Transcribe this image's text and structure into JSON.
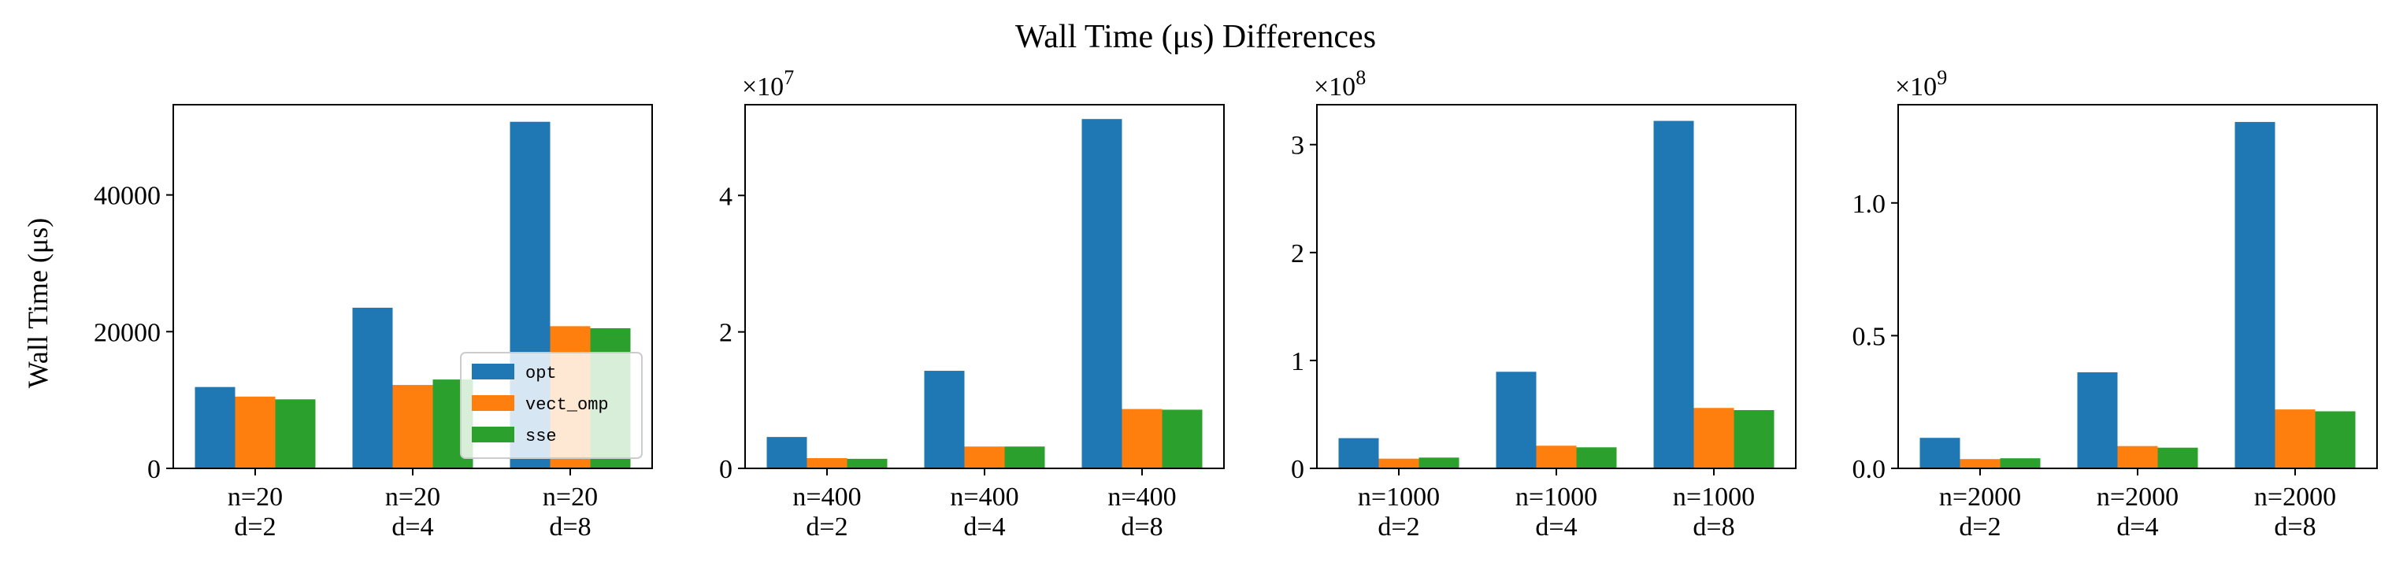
{
  "title": "Wall Time (μs) Differences",
  "ylabel": "Wall Time (μs)",
  "legend": {
    "placement": "lower-right of first panel",
    "entries": [
      {
        "name": "opt",
        "color": "#1f77b4"
      },
      {
        "name": "vect_omp",
        "color": "#ff7f0e"
      },
      {
        "name": "sse",
        "color": "#2ca02c"
      }
    ]
  },
  "chart_data": [
    {
      "type": "bar",
      "categories": [
        [
          "n=20",
          "d=2"
        ],
        [
          "n=20",
          "d=4"
        ],
        [
          "n=20",
          "d=8"
        ]
      ],
      "series": [
        {
          "name": "opt",
          "values": [
            11900,
            23500,
            50700
          ]
        },
        {
          "name": "vect_omp",
          "values": [
            10500,
            12200,
            20800
          ]
        },
        {
          "name": "sse",
          "values": [
            10100,
            13000,
            20500
          ]
        }
      ],
      "ylim": [
        0,
        53200
      ],
      "yticks": [
        0,
        20000,
        40000
      ],
      "ytick_labels": [
        "0",
        "20000",
        "40000"
      ],
      "multiplier": ""
    },
    {
      "type": "bar",
      "categories": [
        [
          "n=400",
          "d=2"
        ],
        [
          "n=400",
          "d=4"
        ],
        [
          "n=400",
          "d=8"
        ]
      ],
      "series": [
        {
          "name": "opt",
          "values": [
            4600000,
            14300000,
            51200000
          ]
        },
        {
          "name": "vect_omp",
          "values": [
            1500000,
            3200000,
            8700000
          ]
        },
        {
          "name": "sse",
          "values": [
            1400000,
            3200000,
            8600000
          ]
        }
      ],
      "ylim": [
        0,
        53300000
      ],
      "yticks": [
        0,
        20000000,
        40000000
      ],
      "ytick_labels": [
        "0",
        "2",
        "4"
      ],
      "multiplier": "×10^7"
    },
    {
      "type": "bar",
      "categories": [
        [
          "n=1000",
          "d=2"
        ],
        [
          "n=1000",
          "d=4"
        ],
        [
          "n=1000",
          "d=8"
        ]
      ],
      "series": [
        {
          "name": "opt",
          "values": [
            28000000,
            89500000,
            322000000
          ]
        },
        {
          "name": "vect_omp",
          "values": [
            9000000,
            21000000,
            56000000
          ]
        },
        {
          "name": "sse",
          "values": [
            10000000,
            19500000,
            54000000
          ]
        }
      ],
      "ylim": [
        0,
        337000000
      ],
      "yticks": [
        0,
        100000000,
        200000000,
        300000000
      ],
      "ytick_labels": [
        "0",
        "1",
        "2",
        "3"
      ],
      "multiplier": "×10^8"
    },
    {
      "type": "bar",
      "categories": [
        [
          "n=2000",
          "d=2"
        ],
        [
          "n=2000",
          "d=4"
        ],
        [
          "n=2000",
          "d=8"
        ]
      ],
      "series": [
        {
          "name": "opt",
          "values": [
            115000000,
            362000000,
            1305000000
          ]
        },
        {
          "name": "vect_omp",
          "values": [
            35000000,
            84000000,
            222000000
          ]
        },
        {
          "name": "sse",
          "values": [
            38000000,
            78000000,
            215000000
          ]
        }
      ],
      "ylim": [
        0,
        1370000000
      ],
      "yticks": [
        0,
        500000000,
        1000000000
      ],
      "ytick_labels": [
        "0.0",
        "0.5",
        "1.0"
      ],
      "multiplier": "×10^9"
    }
  ]
}
